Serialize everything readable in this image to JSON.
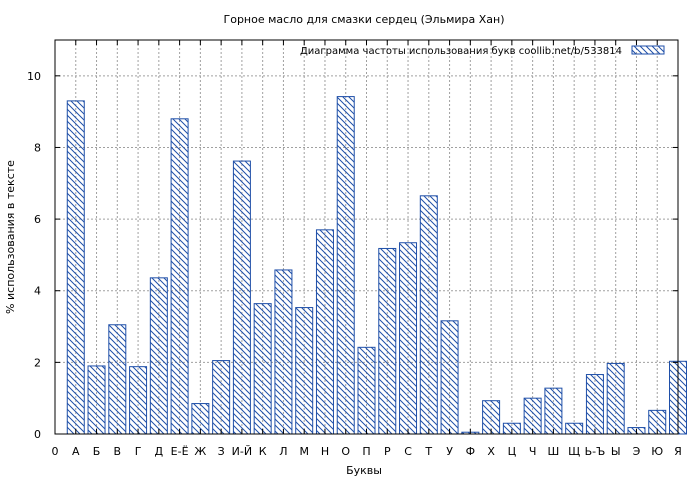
{
  "chart_data": {
    "type": "bar",
    "title": "Горное масло для смазки сердец (Эльмира Хан)",
    "xlabel": "Буквы",
    "ylabel": "% использования в тексте",
    "legend": {
      "label": "Диаграмма частоты использования букв  coollib.net/b/533814",
      "placement": "top-right"
    },
    "ylim": [
      0,
      11
    ],
    "yticks": [
      0,
      2,
      4,
      6,
      8,
      10
    ],
    "grid": true,
    "categories": [
      "0",
      "А",
      "Б",
      "В",
      "Г",
      "Д",
      "Е-Ё",
      "Ж",
      "З",
      "И-Й",
      "К",
      "Л",
      "М",
      "Н",
      "О",
      "П",
      "Р",
      "С",
      "Т",
      "У",
      "Ф",
      "Х",
      "Ц",
      "Ч",
      "Ш",
      "Щ",
      "Ь-Ъ",
      "Ы",
      "Э",
      "Ю",
      "Я"
    ],
    "values": [
      null,
      9.3,
      1.9,
      3.05,
      1.88,
      4.36,
      8.8,
      0.85,
      2.05,
      7.62,
      3.64,
      4.58,
      3.53,
      5.7,
      9.42,
      2.42,
      5.18,
      5.34,
      6.65,
      3.16,
      0.05,
      0.93,
      0.3,
      1.0,
      1.28,
      0.3,
      1.66,
      1.97,
      0.18,
      0.66,
      2.03
    ],
    "colors": {
      "bar_stroke": "#1f4fa8",
      "hatch": "#1f4fa8",
      "grid": "#a0a0a0"
    }
  }
}
